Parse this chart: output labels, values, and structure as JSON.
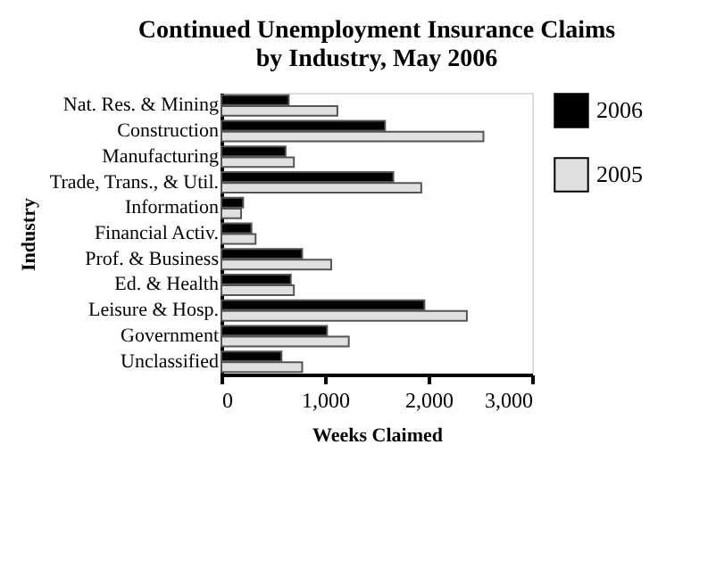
{
  "chart_data": {
    "type": "bar",
    "orientation": "horizontal",
    "title": "Continued Unemployment Insurance Claims\nby Industry, May 2006",
    "xlabel": "Weeks Claimed",
    "ylabel": "Industry",
    "categories": [
      "Nat. Res. & Mining",
      "Construction",
      "Manufacturing",
      "Trade, Trans., & Util.",
      "Information",
      "Financial Activ.",
      "Prof. & Business",
      "Ed. & Health",
      "Leisure & Hosp.",
      "Government",
      "Unclassified"
    ],
    "series": [
      {
        "name": "2006",
        "color": "#000000",
        "values": [
          650,
          1580,
          620,
          1660,
          210,
          290,
          780,
          670,
          1960,
          1020,
          580
        ]
      },
      {
        "name": "2005",
        "color": "#e0e0e0",
        "values": [
          1120,
          2530,
          700,
          1930,
          190,
          330,
          1060,
          700,
          2370,
          1230,
          780
        ]
      }
    ],
    "xlim": [
      0,
      3000
    ],
    "xticks": [
      {
        "value": 0,
        "label": "0"
      },
      {
        "value": 1000,
        "label": "1,000"
      },
      {
        "value": 2000,
        "label": "2,000"
      },
      {
        "value": 3000,
        "label": "3,000"
      }
    ],
    "grid": false,
    "legend": "right"
  }
}
